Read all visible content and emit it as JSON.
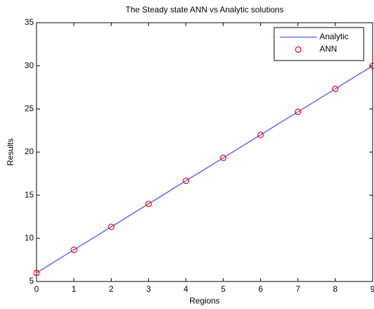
{
  "chart_data": {
    "type": "line",
    "title": "The Steady state ANN vs Analytic solutions",
    "x_label": "Regions",
    "y_label": "Results",
    "x": [
      0,
      1,
      2,
      3,
      4,
      5,
      6,
      7,
      8,
      9
    ],
    "series": [
      {
        "name": "Analytic",
        "color": "#5050ff",
        "mode": "line",
        "values": [
          6,
          8.67,
          11.33,
          14,
          16.67,
          19.33,
          22,
          24.67,
          27.33,
          30
        ]
      },
      {
        "name": "ANN",
        "color": "#ff0000",
        "mode": "markers",
        "values": [
          6,
          8.67,
          11.33,
          14,
          16.67,
          19.33,
          22,
          24.67,
          27.33,
          30
        ]
      }
    ],
    "xlim": [
      0,
      9
    ],
    "ylim": [
      5,
      35
    ],
    "xticks": [
      0,
      1,
      2,
      3,
      4,
      5,
      6,
      7,
      8,
      9
    ],
    "yticks": [
      5,
      10,
      15,
      20,
      25,
      30,
      35
    ],
    "grid": false,
    "legend": "upper right"
  }
}
